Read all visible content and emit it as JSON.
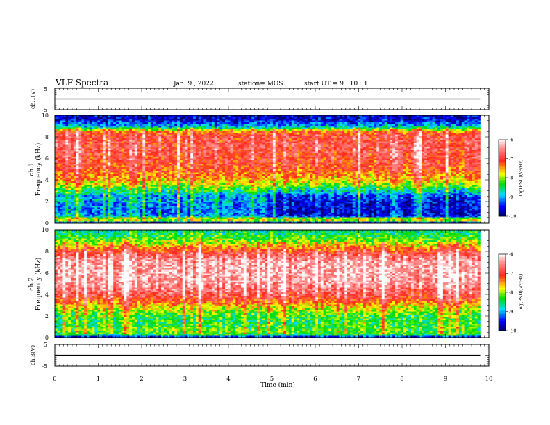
{
  "header": {
    "title": "VLF Spectra",
    "date": "Jan. 9 , 2022",
    "station": "station= MOS",
    "start": "start UT =  9 : 10 : 1"
  },
  "colors": {
    "axis": "#000000",
    "spec_low": "#00006e",
    "spec_blue": "#0000ff",
    "spec_cyan": "#00e0ff",
    "spec_green": "#00e000",
    "spec_yellow": "#ffff00",
    "spec_red": "#ff2020",
    "spec_high": "#ffffff"
  },
  "chart_data": [
    {
      "type": "line",
      "ylabel": "ch.1(V)",
      "y_ticks": [
        "5",
        "-5"
      ],
      "ylim": [
        -5,
        5
      ],
      "xlim": [
        0,
        10
      ],
      "series": [
        {
          "x": [
            0,
            9.8
          ],
          "y": [
            0,
            0
          ]
        }
      ]
    },
    {
      "type": "heatmap",
      "ylabel": "ch.1\nFrequency (kHz)",
      "ylabel_lines": [
        "ch.1",
        "Frequency (kHz)"
      ],
      "y_ticks": [
        "0",
        "2",
        "4",
        "6",
        "8",
        "10"
      ],
      "ylim": [
        0,
        10
      ],
      "xlim": [
        0,
        10
      ],
      "data_end_min": 9.8,
      "colorbar": {
        "label": "log(PSD)(V²/Hz)",
        "ticks": [
          "-6",
          "-7",
          "-8",
          "-9",
          "-10"
        ],
        "range": [
          -10,
          -6
        ]
      },
      "profile_freq_khz": [
        0,
        0.3,
        0.6,
        1.0,
        1.5,
        2.0,
        2.5,
        3.0,
        3.5,
        4.0,
        5.0,
        6.0,
        7.0,
        8.0,
        8.5,
        8.8,
        9.0,
        9.5,
        10
      ],
      "profile_logpsd_first_half": [
        -9.8,
        -7.5,
        -9.0,
        -9.2,
        -9.2,
        -9.0,
        -9.0,
        -8.5,
        -8.0,
        -7.6,
        -7.2,
        -7.0,
        -6.9,
        -7.0,
        -7.3,
        -8.6,
        -8.9,
        -9.6,
        -9.7
      ],
      "profile_logpsd_second_half": [
        -9.8,
        -7.5,
        -9.6,
        -9.7,
        -9.7,
        -9.6,
        -9.4,
        -8.8,
        -8.2,
        -7.7,
        -7.2,
        -7.0,
        -6.9,
        -7.0,
        -7.3,
        -8.6,
        -8.9,
        -9.6,
        -9.7
      ],
      "change_time_min": 4.9
    },
    {
      "type": "heatmap",
      "ylabel": "ch.2\nFrequency (kHz)",
      "ylabel_lines": [
        "ch.2",
        "Frequency (kHz)"
      ],
      "y_ticks": [
        "0",
        "2",
        "4",
        "6",
        "8",
        "10"
      ],
      "ylim": [
        0,
        10
      ],
      "xlim": [
        0,
        10
      ],
      "data_end_min": 9.8,
      "colorbar": {
        "label": "log(PSD)(V²/Hz)",
        "ticks": [
          "-6",
          "-7",
          "-8",
          "-9",
          "-10"
        ],
        "range": [
          -10,
          -6
        ]
      },
      "profile_freq_khz": [
        0,
        0.2,
        0.5,
        1.0,
        1.5,
        2.0,
        2.5,
        3.0,
        3.5,
        4.0,
        5.0,
        6.0,
        7.0,
        7.5,
        8.0,
        8.5,
        9.0,
        9.5,
        10
      ],
      "profile_logpsd": [
        -9.8,
        -8.5,
        -8.2,
        -8.3,
        -8.4,
        -8.3,
        -8.0,
        -7.6,
        -7.1,
        -6.8,
        -6.4,
        -6.3,
        -6.4,
        -6.6,
        -7.0,
        -7.6,
        -8.1,
        -8.4,
        -8.6
      ]
    },
    {
      "type": "line",
      "ylabel": "ch.3(V)",
      "y_ticks": [
        "5",
        "-5"
      ],
      "ylim": [
        -5,
        5
      ],
      "xlim": [
        0,
        10
      ],
      "xlabel": "Time (min)",
      "x_ticks": [
        "0",
        "1",
        "2",
        "3",
        "4",
        "5",
        "6",
        "7",
        "8",
        "9",
        "10"
      ],
      "series": [
        {
          "x": [
            0,
            9.8
          ],
          "y": [
            0,
            0
          ]
        }
      ]
    }
  ]
}
